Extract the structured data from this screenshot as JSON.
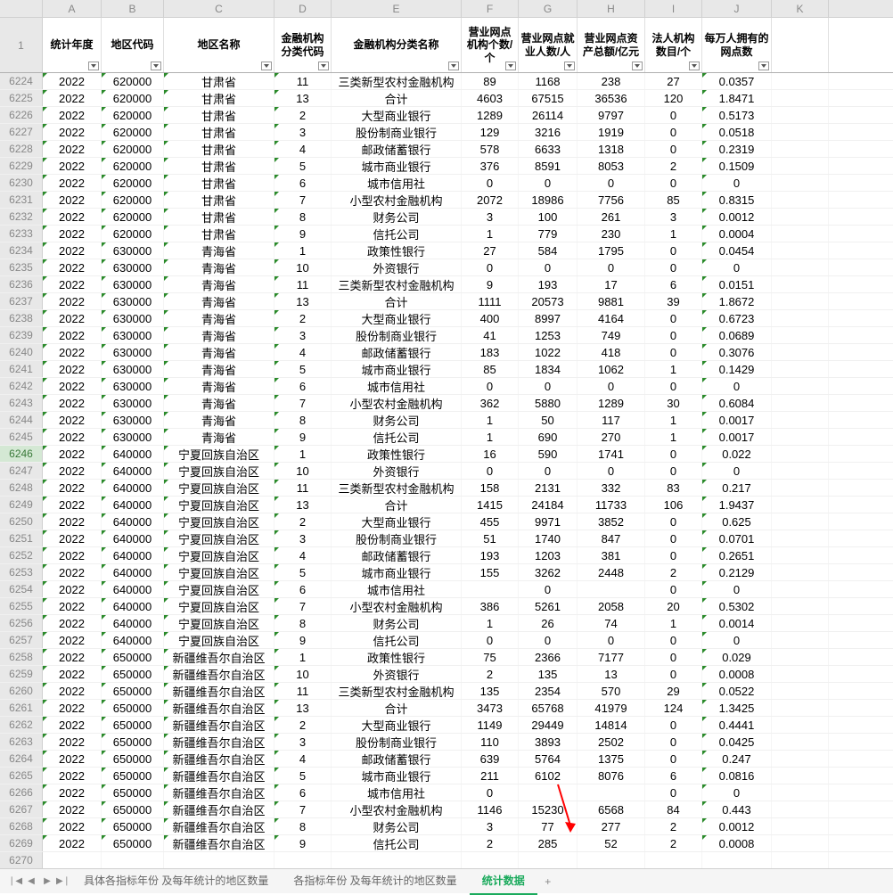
{
  "columns": {
    "letters": [
      "A",
      "B",
      "C",
      "D",
      "E",
      "F",
      "G",
      "H",
      "I",
      "J",
      "K"
    ],
    "headers": [
      "统计年度",
      "地区代码",
      "地区名称",
      "金融机构分类代码",
      "金融机构分类名称",
      "营业网点机构个数/个",
      "营业网点就业人数/人",
      "营业网点资产总额/亿元",
      "法人机构数目/个",
      "每万人拥有的网点数"
    ],
    "widths": [
      "cA",
      "cB",
      "cC",
      "cD",
      "cE",
      "cF",
      "cG",
      "cH",
      "cI",
      "cJ",
      "cK"
    ]
  },
  "rowStart": 6224,
  "selectedRow": 6246,
  "rows": [
    [
      "2022",
      "620000",
      "甘肃省",
      "11",
      "三类新型农村金融机构",
      "89",
      "1168",
      "238",
      "27",
      "0.0357"
    ],
    [
      "2022",
      "620000",
      "甘肃省",
      "13",
      "合计",
      "4603",
      "67515",
      "36536",
      "120",
      "1.8471"
    ],
    [
      "2022",
      "620000",
      "甘肃省",
      "2",
      "大型商业银行",
      "1289",
      "26114",
      "9797",
      "0",
      "0.5173"
    ],
    [
      "2022",
      "620000",
      "甘肃省",
      "3",
      "股份制商业银行",
      "129",
      "3216",
      "1919",
      "0",
      "0.0518"
    ],
    [
      "2022",
      "620000",
      "甘肃省",
      "4",
      "邮政储蓄银行",
      "578",
      "6633",
      "1318",
      "0",
      "0.2319"
    ],
    [
      "2022",
      "620000",
      "甘肃省",
      "5",
      "城市商业银行",
      "376",
      "8591",
      "8053",
      "2",
      "0.1509"
    ],
    [
      "2022",
      "620000",
      "甘肃省",
      "6",
      "城市信用社",
      "0",
      "0",
      "0",
      "0",
      "0"
    ],
    [
      "2022",
      "620000",
      "甘肃省",
      "7",
      "小型农村金融机构",
      "2072",
      "18986",
      "7756",
      "85",
      "0.8315"
    ],
    [
      "2022",
      "620000",
      "甘肃省",
      "8",
      "财务公司",
      "3",
      "100",
      "261",
      "3",
      "0.0012"
    ],
    [
      "2022",
      "620000",
      "甘肃省",
      "9",
      "信托公司",
      "1",
      "779",
      "230",
      "1",
      "0.0004"
    ],
    [
      "2022",
      "630000",
      "青海省",
      "1",
      "政策性银行",
      "27",
      "584",
      "1795",
      "0",
      "0.0454"
    ],
    [
      "2022",
      "630000",
      "青海省",
      "10",
      "外资银行",
      "0",
      "0",
      "0",
      "0",
      "0"
    ],
    [
      "2022",
      "630000",
      "青海省",
      "11",
      "三类新型农村金融机构",
      "9",
      "193",
      "17",
      "6",
      "0.0151"
    ],
    [
      "2022",
      "630000",
      "青海省",
      "13",
      "合计",
      "1111",
      "20573",
      "9881",
      "39",
      "1.8672"
    ],
    [
      "2022",
      "630000",
      "青海省",
      "2",
      "大型商业银行",
      "400",
      "8997",
      "4164",
      "0",
      "0.6723"
    ],
    [
      "2022",
      "630000",
      "青海省",
      "3",
      "股份制商业银行",
      "41",
      "1253",
      "749",
      "0",
      "0.0689"
    ],
    [
      "2022",
      "630000",
      "青海省",
      "4",
      "邮政储蓄银行",
      "183",
      "1022",
      "418",
      "0",
      "0.3076"
    ],
    [
      "2022",
      "630000",
      "青海省",
      "5",
      "城市商业银行",
      "85",
      "1834",
      "1062",
      "1",
      "0.1429"
    ],
    [
      "2022",
      "630000",
      "青海省",
      "6",
      "城市信用社",
      "0",
      "0",
      "0",
      "0",
      "0"
    ],
    [
      "2022",
      "630000",
      "青海省",
      "7",
      "小型农村金融机构",
      "362",
      "5880",
      "1289",
      "30",
      "0.6084"
    ],
    [
      "2022",
      "630000",
      "青海省",
      "8",
      "财务公司",
      "1",
      "50",
      "117",
      "1",
      "0.0017"
    ],
    [
      "2022",
      "630000",
      "青海省",
      "9",
      "信托公司",
      "1",
      "690",
      "270",
      "1",
      "0.0017"
    ],
    [
      "2022",
      "640000",
      "宁夏回族自治区",
      "1",
      "政策性银行",
      "16",
      "590",
      "1741",
      "0",
      "0.022"
    ],
    [
      "2022",
      "640000",
      "宁夏回族自治区",
      "10",
      "外资银行",
      "0",
      "0",
      "0",
      "0",
      "0"
    ],
    [
      "2022",
      "640000",
      "宁夏回族自治区",
      "11",
      "三类新型农村金融机构",
      "158",
      "2131",
      "332",
      "83",
      "0.217"
    ],
    [
      "2022",
      "640000",
      "宁夏回族自治区",
      "13",
      "合计",
      "1415",
      "24184",
      "11733",
      "106",
      "1.9437"
    ],
    [
      "2022",
      "640000",
      "宁夏回族自治区",
      "2",
      "大型商业银行",
      "455",
      "9971",
      "3852",
      "0",
      "0.625"
    ],
    [
      "2022",
      "640000",
      "宁夏回族自治区",
      "3",
      "股份制商业银行",
      "51",
      "1740",
      "847",
      "0",
      "0.0701"
    ],
    [
      "2022",
      "640000",
      "宁夏回族自治区",
      "4",
      "邮政储蓄银行",
      "193",
      "1203",
      "381",
      "0",
      "0.2651"
    ],
    [
      "2022",
      "640000",
      "宁夏回族自治区",
      "5",
      "城市商业银行",
      "155",
      "3262",
      "2448",
      "2",
      "0.2129"
    ],
    [
      "2022",
      "640000",
      "宁夏回族自治区",
      "6",
      "城市信用社",
      "",
      "0",
      "",
      "0",
      "0"
    ],
    [
      "2022",
      "640000",
      "宁夏回族自治区",
      "7",
      "小型农村金融机构",
      "386",
      "5261",
      "2058",
      "20",
      "0.5302"
    ],
    [
      "2022",
      "640000",
      "宁夏回族自治区",
      "8",
      "财务公司",
      "1",
      "26",
      "74",
      "1",
      "0.0014"
    ],
    [
      "2022",
      "640000",
      "宁夏回族自治区",
      "9",
      "信托公司",
      "0",
      "0",
      "0",
      "0",
      "0"
    ],
    [
      "2022",
      "650000",
      "新疆维吾尔自治区",
      "1",
      "政策性银行",
      "75",
      "2366",
      "7177",
      "0",
      "0.029"
    ],
    [
      "2022",
      "650000",
      "新疆维吾尔自治区",
      "10",
      "外资银行",
      "2",
      "135",
      "13",
      "0",
      "0.0008"
    ],
    [
      "2022",
      "650000",
      "新疆维吾尔自治区",
      "11",
      "三类新型农村金融机构",
      "135",
      "2354",
      "570",
      "29",
      "0.0522"
    ],
    [
      "2022",
      "650000",
      "新疆维吾尔自治区",
      "13",
      "合计",
      "3473",
      "65768",
      "41979",
      "124",
      "1.3425"
    ],
    [
      "2022",
      "650000",
      "新疆维吾尔自治区",
      "2",
      "大型商业银行",
      "1149",
      "29449",
      "14814",
      "0",
      "0.4441"
    ],
    [
      "2022",
      "650000",
      "新疆维吾尔自治区",
      "3",
      "股份制商业银行",
      "110",
      "3893",
      "2502",
      "0",
      "0.0425"
    ],
    [
      "2022",
      "650000",
      "新疆维吾尔自治区",
      "4",
      "邮政储蓄银行",
      "639",
      "5764",
      "1375",
      "0",
      "0.247"
    ],
    [
      "2022",
      "650000",
      "新疆维吾尔自治区",
      "5",
      "城市商业银行",
      "211",
      "6102",
      "8076",
      "6",
      "0.0816"
    ],
    [
      "2022",
      "650000",
      "新疆维吾尔自治区",
      "6",
      "城市信用社",
      "0",
      "",
      "",
      "0",
      "0"
    ],
    [
      "2022",
      "650000",
      "新疆维吾尔自治区",
      "7",
      "小型农村金融机构",
      "1146",
      "15230",
      "6568",
      "84",
      "0.443"
    ],
    [
      "2022",
      "650000",
      "新疆维吾尔自治区",
      "8",
      "财务公司",
      "3",
      "77",
      "277",
      "2",
      "0.0012"
    ],
    [
      "2022",
      "650000",
      "新疆维吾尔自治区",
      "9",
      "信托公司",
      "2",
      "285",
      "52",
      "2",
      "0.0008"
    ]
  ],
  "emptyRows": [
    6270
  ],
  "tabs": {
    "items": [
      "具体各指标年份 及每年统计的地区数量",
      "各指标年份 及每年统计的地区数量",
      "统计数据"
    ],
    "active": 2
  }
}
